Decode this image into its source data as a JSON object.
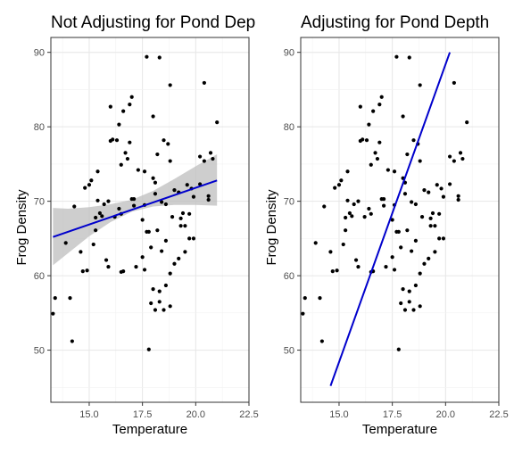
{
  "colors": {
    "background": "#ffffff",
    "grid_major": "#e6e6e6",
    "grid_minor": "#f2f2f2",
    "panel_border": "#333333",
    "points": "#000000",
    "fit_line": "#0000cc",
    "confidence_band": "#bdbdbd",
    "tick_text": "#4d4d4d"
  },
  "chart_data": [
    {
      "type": "scatter",
      "title": "Not Adjusting for Pond Dep",
      "xlabel": "Temperature",
      "ylabel": "Frog Density",
      "xlim": [
        13.2,
        22.5
      ],
      "ylim": [
        43,
        92
      ],
      "xticks": [
        "15.0",
        "17.5",
        "20.0",
        "22.5"
      ],
      "yticks": [
        "50",
        "60",
        "70",
        "80",
        "90"
      ],
      "grid": true,
      "points": [
        [
          13.3,
          54.9
        ],
        [
          13.4,
          57.0
        ],
        [
          13.9,
          64.4
        ],
        [
          14.1,
          57.0
        ],
        [
          14.2,
          51.2
        ],
        [
          14.3,
          69.3
        ],
        [
          14.6,
          63.2
        ],
        [
          14.7,
          60.6
        ],
        [
          14.8,
          71.8
        ],
        [
          14.9,
          60.7
        ],
        [
          15.0,
          72.2
        ],
        [
          15.1,
          72.8
        ],
        [
          15.2,
          64.2
        ],
        [
          15.3,
          66.1
        ],
        [
          15.3,
          67.8
        ],
        [
          15.4,
          70.1
        ],
        [
          15.4,
          74.0
        ],
        [
          15.5,
          68.4
        ],
        [
          15.6,
          68.0
        ],
        [
          15.7,
          69.6
        ],
        [
          15.8,
          62.1
        ],
        [
          15.9,
          70.0
        ],
        [
          15.9,
          61.2
        ],
        [
          16.0,
          82.7
        ],
        [
          16.0,
          78.1
        ],
        [
          16.1,
          78.3
        ],
        [
          16.2,
          67.9
        ],
        [
          16.3,
          78.2
        ],
        [
          16.4,
          80.3
        ],
        [
          16.4,
          69.0
        ],
        [
          16.5,
          60.5
        ],
        [
          16.5,
          68.3
        ],
        [
          16.5,
          74.9
        ],
        [
          16.6,
          60.6
        ],
        [
          16.6,
          82.1
        ],
        [
          16.7,
          76.5
        ],
        [
          16.8,
          75.7
        ],
        [
          16.9,
          83.0
        ],
        [
          16.9,
          77.9
        ],
        [
          17.0,
          84.0
        ],
        [
          17.0,
          70.3
        ],
        [
          17.1,
          69.4
        ],
        [
          17.1,
          70.3
        ],
        [
          17.2,
          61.2
        ],
        [
          17.3,
          74.2
        ],
        [
          17.5,
          62.5
        ],
        [
          17.5,
          67.5
        ],
        [
          17.6,
          74.0
        ],
        [
          17.6,
          69.5
        ],
        [
          17.6,
          60.8
        ],
        [
          17.7,
          89.4
        ],
        [
          17.7,
          65.9
        ],
        [
          17.8,
          65.9
        ],
        [
          17.8,
          50.1
        ],
        [
          17.9,
          56.3
        ],
        [
          17.9,
          63.8
        ],
        [
          18.0,
          81.4
        ],
        [
          18.0,
          73.1
        ],
        [
          18.0,
          58.2
        ],
        [
          18.1,
          55.4
        ],
        [
          18.1,
          72.5
        ],
        [
          18.1,
          71.0
        ],
        [
          18.2,
          66.1
        ],
        [
          18.2,
          76.3
        ],
        [
          18.3,
          89.3
        ],
        [
          18.3,
          57.9
        ],
        [
          18.3,
          56.5
        ],
        [
          18.4,
          63.3
        ],
        [
          18.4,
          69.9
        ],
        [
          18.5,
          55.4
        ],
        [
          18.5,
          78.2
        ],
        [
          18.6,
          69.6
        ],
        [
          18.6,
          58.7
        ],
        [
          18.6,
          64.7
        ],
        [
          18.7,
          77.7
        ],
        [
          18.8,
          60.3
        ],
        [
          18.8,
          55.9
        ],
        [
          18.8,
          85.6
        ],
        [
          18.8,
          75.4
        ],
        [
          18.9,
          67.9
        ],
        [
          19.0,
          71.5
        ],
        [
          19.0,
          61.6
        ],
        [
          19.2,
          62.3
        ],
        [
          19.2,
          71.2
        ],
        [
          19.3,
          67.7
        ],
        [
          19.3,
          66.7
        ],
        [
          19.4,
          68.4
        ],
        [
          19.5,
          63.2
        ],
        [
          19.5,
          66.7
        ],
        [
          19.6,
          72.2
        ],
        [
          19.7,
          68.3
        ],
        [
          19.7,
          65.0
        ],
        [
          19.8,
          71.7
        ],
        [
          19.9,
          65.0
        ],
        [
          19.9,
          70.6
        ],
        [
          20.2,
          76.0
        ],
        [
          20.2,
          72.3
        ],
        [
          20.4,
          85.9
        ],
        [
          20.4,
          75.4
        ],
        [
          20.6,
          70.7
        ],
        [
          20.6,
          70.2
        ],
        [
          20.7,
          76.5
        ],
        [
          20.8,
          75.7
        ],
        [
          21.0,
          80.6
        ]
      ],
      "fit_line": {
        "x": [
          13.3,
          21.0
        ],
        "y": [
          65.2,
          72.8
        ]
      },
      "confidence_band": {
        "x": [
          13.3,
          14.0,
          15.0,
          16.0,
          17.0,
          18.0,
          19.0,
          20.0,
          21.0
        ],
        "lower": [
          61.4,
          63.0,
          65.3,
          67.2,
          68.6,
          69.3,
          69.5,
          69.5,
          69.4
        ],
        "upper": [
          69.1,
          69.0,
          69.2,
          69.6,
          70.2,
          71.4,
          73.0,
          74.7,
          76.3
        ]
      }
    },
    {
      "type": "scatter",
      "title": "Adjusting for Pond Depth",
      "xlabel": "Temperature",
      "ylabel": "Frog Density",
      "xlim": [
        13.2,
        22.5
      ],
      "ylim": [
        43,
        92
      ],
      "xticks": [
        "15.0",
        "17.5",
        "20.0",
        "22.5"
      ],
      "yticks": [
        "50",
        "60",
        "70",
        "80",
        "90"
      ],
      "grid": true,
      "points_same_as_left_panel": true,
      "fit_line": {
        "x": [
          14.6,
          20.2
        ],
        "y": [
          45.2,
          90.0
        ]
      }
    }
  ]
}
